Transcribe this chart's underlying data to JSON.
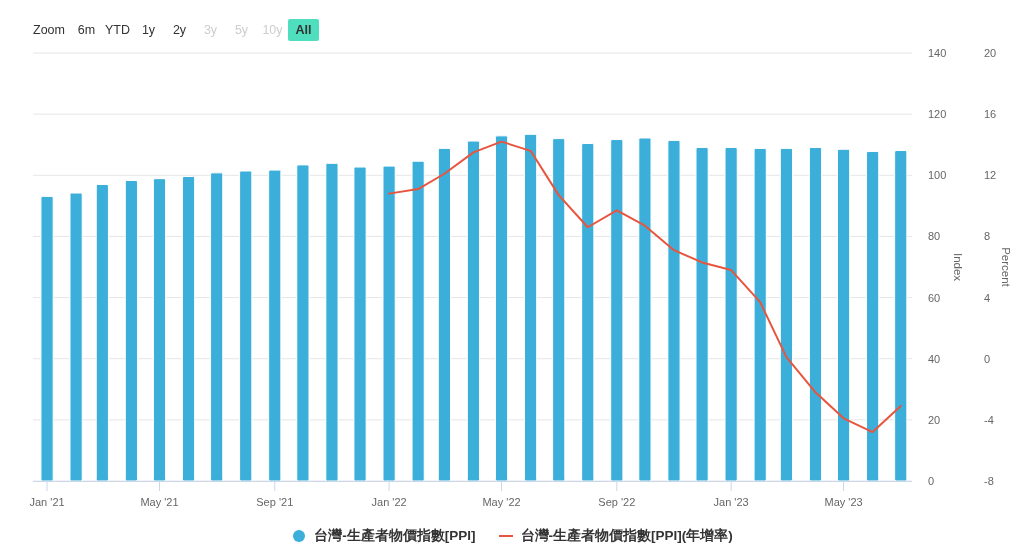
{
  "chart_data": {
    "type": "bar",
    "x": [
      "2021-01",
      "2021-02",
      "2021-03",
      "2021-04",
      "2021-05",
      "2021-06",
      "2021-07",
      "2021-08",
      "2021-09",
      "2021-10",
      "2021-11",
      "2021-12",
      "2022-01",
      "2022-02",
      "2022-03",
      "2022-04",
      "2022-05",
      "2022-06",
      "2022-07",
      "2022-08",
      "2022-09",
      "2022-10",
      "2022-11",
      "2022-12",
      "2023-01",
      "2023-02",
      "2023-03",
      "2023-04",
      "2023-05",
      "2023-06",
      "2023-07"
    ],
    "series": [
      {
        "name": "台灣-生產者物價指數[PPI]",
        "color": "#3bafda",
        "values": [
          93.1,
          94.2,
          97.0,
          98.3,
          98.9,
          99.6,
          100.8,
          101.4,
          101.7,
          103.4,
          103.9,
          102.7,
          103.0,
          104.6,
          108.8,
          111.2,
          112.9,
          113.4,
          112.0,
          110.4,
          111.7,
          112.2,
          111.4,
          109.1,
          109.1,
          108.8,
          108.8,
          109.1,
          108.5,
          107.8,
          108.1
        ]
      },
      {
        "name": "台灣-生產者物價指數[PPI](年增率)",
        "color": "#e8553d",
        "type": "line",
        "axis": "y2",
        "x": [
          "2022-01",
          "2022-02",
          "2022-03",
          "2022-04",
          "2022-05",
          "2022-06",
          "2022-07",
          "2022-08",
          "2022-09",
          "2022-10",
          "2022-11",
          "2022-12",
          "2023-01",
          "2023-02",
          "2023-03",
          "2023-04",
          "2023-05",
          "2023-06",
          "2023-07"
        ],
        "values": [
          10.8,
          11.1,
          12.1,
          13.5,
          14.2,
          13.6,
          10.7,
          8.6,
          9.7,
          8.7,
          7.1,
          6.3,
          5.8,
          3.7,
          0.1,
          -2.2,
          -3.9,
          -4.8,
          -3.1
        ]
      }
    ],
    "xlim": [
      "2020-12-17",
      "2023-07-13"
    ],
    "xticks": [
      {
        "value": "2021-01",
        "label": "Jan '21"
      },
      {
        "value": "2021-05",
        "label": "May '21"
      },
      {
        "value": "2021-09",
        "label": "Sep '21"
      },
      {
        "value": "2022-01",
        "label": "Jan '22"
      },
      {
        "value": "2022-05",
        "label": "May '22"
      },
      {
        "value": "2022-09",
        "label": "Sep '22"
      },
      {
        "value": "2023-01",
        "label": "Jan '23"
      },
      {
        "value": "2023-05",
        "label": "May '23"
      }
    ],
    "ylim": [
      0,
      140
    ],
    "yticks": [
      0,
      20,
      40,
      60,
      80,
      100,
      120,
      140
    ],
    "y2lim": [
      -8,
      20
    ],
    "y2ticks": [
      -8,
      -4,
      0,
      4,
      8,
      12,
      16,
      20
    ],
    "ylabel": "Index",
    "y2label": "Percent",
    "grid": "y",
    "legend": "bottom",
    "annotations": [
      "Zoom",
      "6m",
      "YTD",
      "1y",
      "2y",
      "3y",
      "5y",
      "10y",
      "All"
    ]
  }
}
